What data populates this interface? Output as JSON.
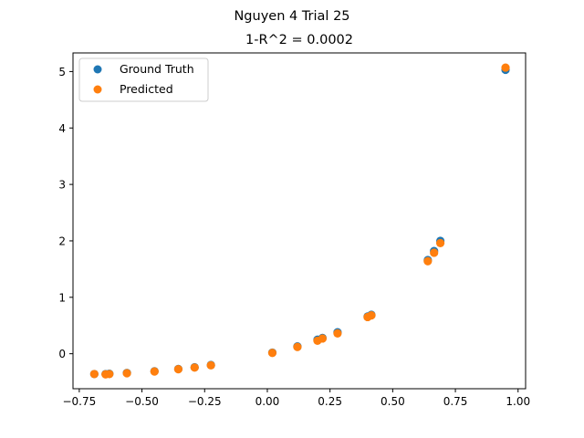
{
  "chart_data": {
    "type": "scatter",
    "suptitle": "Nguyen 4 Trial 25",
    "title": "1-R^2 = 0.0002",
    "xlabel": "",
    "ylabel": "",
    "xlim": [
      -0.775,
      1.03
    ],
    "ylim": [
      -0.62,
      5.33
    ],
    "xticks": [
      -0.75,
      -0.5,
      -0.25,
      0.0,
      0.25,
      0.5,
      0.75,
      1.0
    ],
    "xtick_labels": [
      "−0.75",
      "−0.50",
      "−0.25",
      "0.00",
      "0.25",
      "0.50",
      "0.75",
      "1.00"
    ],
    "yticks": [
      0,
      1,
      2,
      3,
      4,
      5
    ],
    "ytick_labels": [
      "0",
      "1",
      "2",
      "3",
      "4",
      "5"
    ],
    "grid": false,
    "legend_position": "top-left",
    "series": [
      {
        "name": "Ground Truth",
        "color": "#1f77b4",
        "x": [
          -0.69,
          -0.645,
          -0.63,
          -0.56,
          -0.45,
          -0.355,
          -0.29,
          -0.225,
          0.02,
          0.12,
          0.2,
          0.22,
          0.28,
          0.4,
          0.415,
          0.64,
          0.665,
          0.69,
          0.95
        ],
        "y": [
          -0.36,
          -0.36,
          -0.355,
          -0.34,
          -0.31,
          -0.27,
          -0.24,
          -0.2,
          0.02,
          0.13,
          0.25,
          0.28,
          0.38,
          0.66,
          0.69,
          1.66,
          1.82,
          2.0,
          5.03
        ]
      },
      {
        "name": "Predicted",
        "color": "#ff7f0e",
        "x": [
          -0.69,
          -0.645,
          -0.63,
          -0.56,
          -0.45,
          -0.355,
          -0.29,
          -0.225,
          0.02,
          0.12,
          0.2,
          0.22,
          0.28,
          0.4,
          0.415,
          0.64,
          0.665,
          0.69,
          0.95
        ],
        "y": [
          -0.36,
          -0.365,
          -0.36,
          -0.345,
          -0.315,
          -0.275,
          -0.245,
          -0.205,
          0.015,
          0.12,
          0.23,
          0.27,
          0.36,
          0.65,
          0.68,
          1.64,
          1.79,
          1.96,
          5.07
        ]
      }
    ]
  }
}
